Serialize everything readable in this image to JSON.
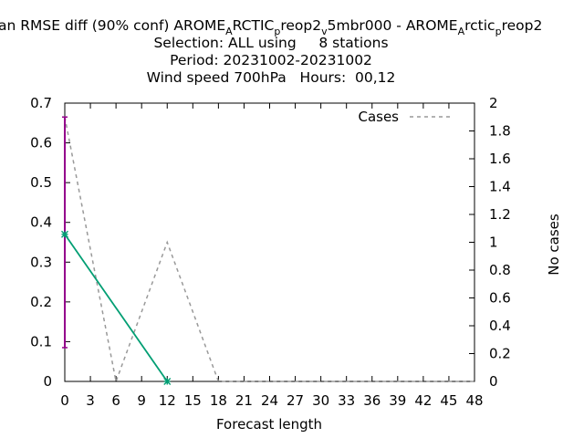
{
  "chart_data": {
    "type": "line",
    "title": {
      "line1_parts": [
        {
          "t": "an RMSE diff (90% conf) AROME",
          "sub": false
        },
        {
          "t": "A",
          "sub": true
        },
        {
          "t": "RCTIC",
          "sub": false
        },
        {
          "t": "p",
          "sub": true
        },
        {
          "t": "reop2",
          "sub": false
        },
        {
          "t": "v",
          "sub": true
        },
        {
          "t": "5mbr000 - AROME",
          "sub": false
        },
        {
          "t": "A",
          "sub": true
        },
        {
          "t": "rctic",
          "sub": false
        },
        {
          "t": "p",
          "sub": true
        },
        {
          "t": "reop2",
          "sub": false
        }
      ],
      "line2": "Selection: ALL using     8 stations",
      "line3": "Period: 20231002-20231002",
      "line4": "Wind speed 700hPa   Hours:  00,12"
    },
    "xlabel": "Forecast length",
    "y2label": "No cases",
    "xlim": [
      0,
      48
    ],
    "ylim": [
      0,
      0.7
    ],
    "y2lim": [
      0,
      2
    ],
    "x_ticks": [
      "0",
      "3",
      "6",
      "9",
      "12",
      "15",
      "18",
      "21",
      "24",
      "27",
      "30",
      "33",
      "36",
      "39",
      "42",
      "45",
      "48"
    ],
    "y_ticks": [
      "0",
      "0.1",
      "0.2",
      "0.3",
      "0.4",
      "0.5",
      "0.6",
      "0.7"
    ],
    "y2_ticks": [
      "0",
      "0.2",
      "0.4",
      "0.6",
      "0.8",
      "1",
      "1.2",
      "1.4",
      "1.6",
      "1.8",
      "2"
    ],
    "grid": false,
    "legend_position": "top-right",
    "series": [
      {
        "name": "",
        "axis": "y",
        "color": "#009e73",
        "x": [
          0,
          12
        ],
        "y": [
          0.37,
          0.0
        ],
        "errorbars": [
          {
            "x": 0,
            "low": 0.085,
            "high": 0.665,
            "color": "#94008c"
          },
          {
            "x": 12,
            "low": 0.0,
            "high": 0.0,
            "color": "#94008c"
          }
        ]
      },
      {
        "name": "Cases",
        "axis": "y2",
        "color": "#999999",
        "dash": true,
        "x": [
          0,
          6,
          12,
          18,
          24,
          30,
          36,
          42,
          48
        ],
        "y": [
          1.9,
          0,
          1.0,
          0,
          0,
          0,
          0,
          0,
          0
        ]
      }
    ]
  }
}
